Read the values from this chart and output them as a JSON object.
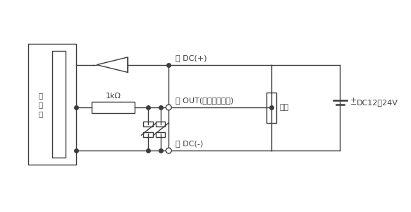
{
  "bg_color": "#ffffff",
  "line_color": "#3c3c3c",
  "figsize": [
    5.83,
    3.0
  ],
  "dpi": 100,
  "label_main": "主\n回\n路",
  "label_brown": "茶 DC(+)",
  "label_black": "黒 OUT(アナログ出力)",
  "label_blue": "青 DC(-)",
  "label_dc": "DC12～24V",
  "label_load": "負荷",
  "label_resistor": "1kΩ"
}
